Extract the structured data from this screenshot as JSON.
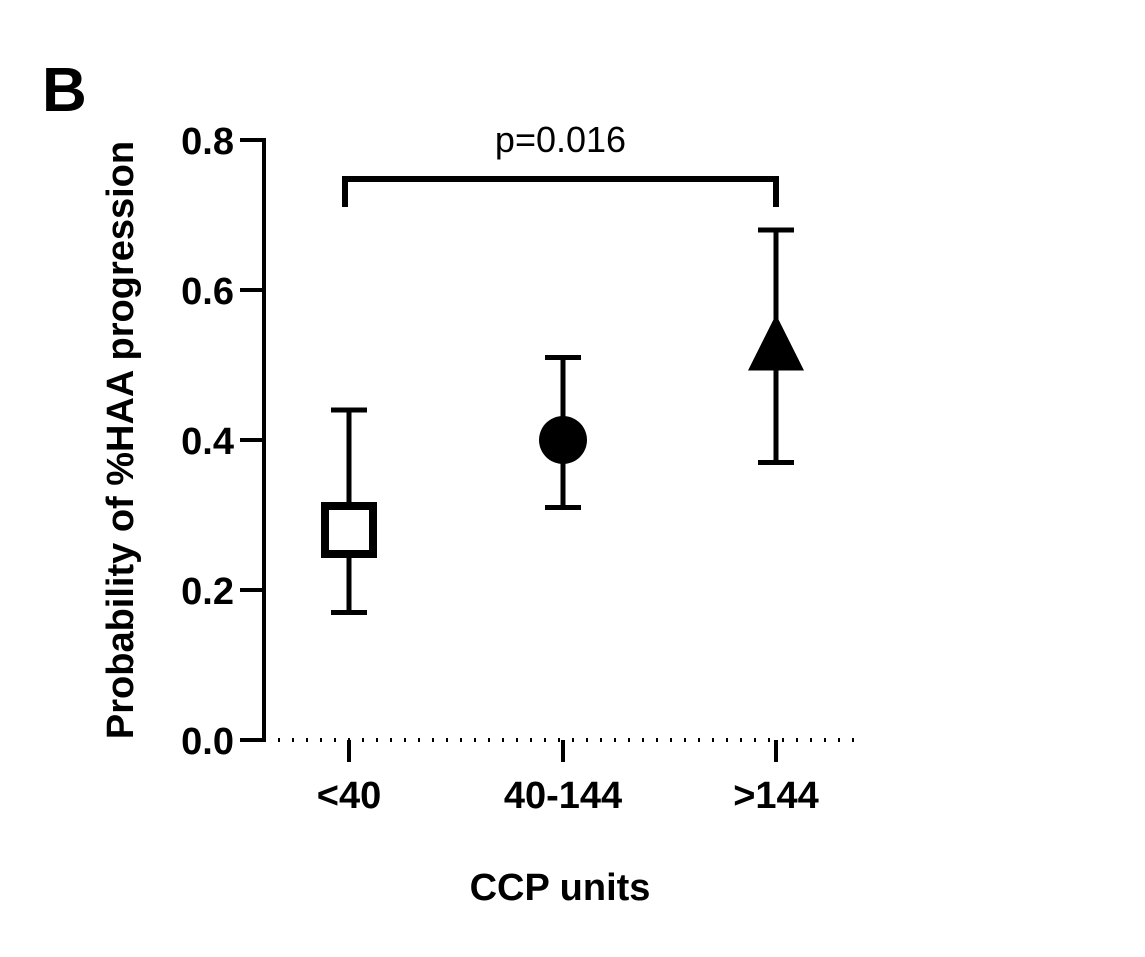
{
  "panel_label": "B",
  "chart_data": {
    "type": "scatter",
    "title": "",
    "xlabel": "CCP units",
    "ylabel": "Probability of %HAA progression",
    "categories": [
      "<40",
      "40-144",
      ">144"
    ],
    "values": [
      0.28,
      0.4,
      0.53
    ],
    "error_low": [
      0.17,
      0.31,
      0.37
    ],
    "error_high": [
      0.44,
      0.51,
      0.68
    ],
    "markers": [
      "open-square",
      "filled-circle",
      "filled-triangle"
    ],
    "ylim": [
      0,
      0.8
    ],
    "yticks": [
      "0.0",
      "0.2",
      "0.4",
      "0.6",
      "0.8"
    ],
    "ytick_values": [
      0,
      0.2,
      0.4,
      0.6,
      0.8
    ],
    "grid": false,
    "legend": "none",
    "annotations": [
      {
        "text": "p=0.016",
        "from": "<40",
        "to": ">144"
      }
    ],
    "color": "#000000"
  }
}
